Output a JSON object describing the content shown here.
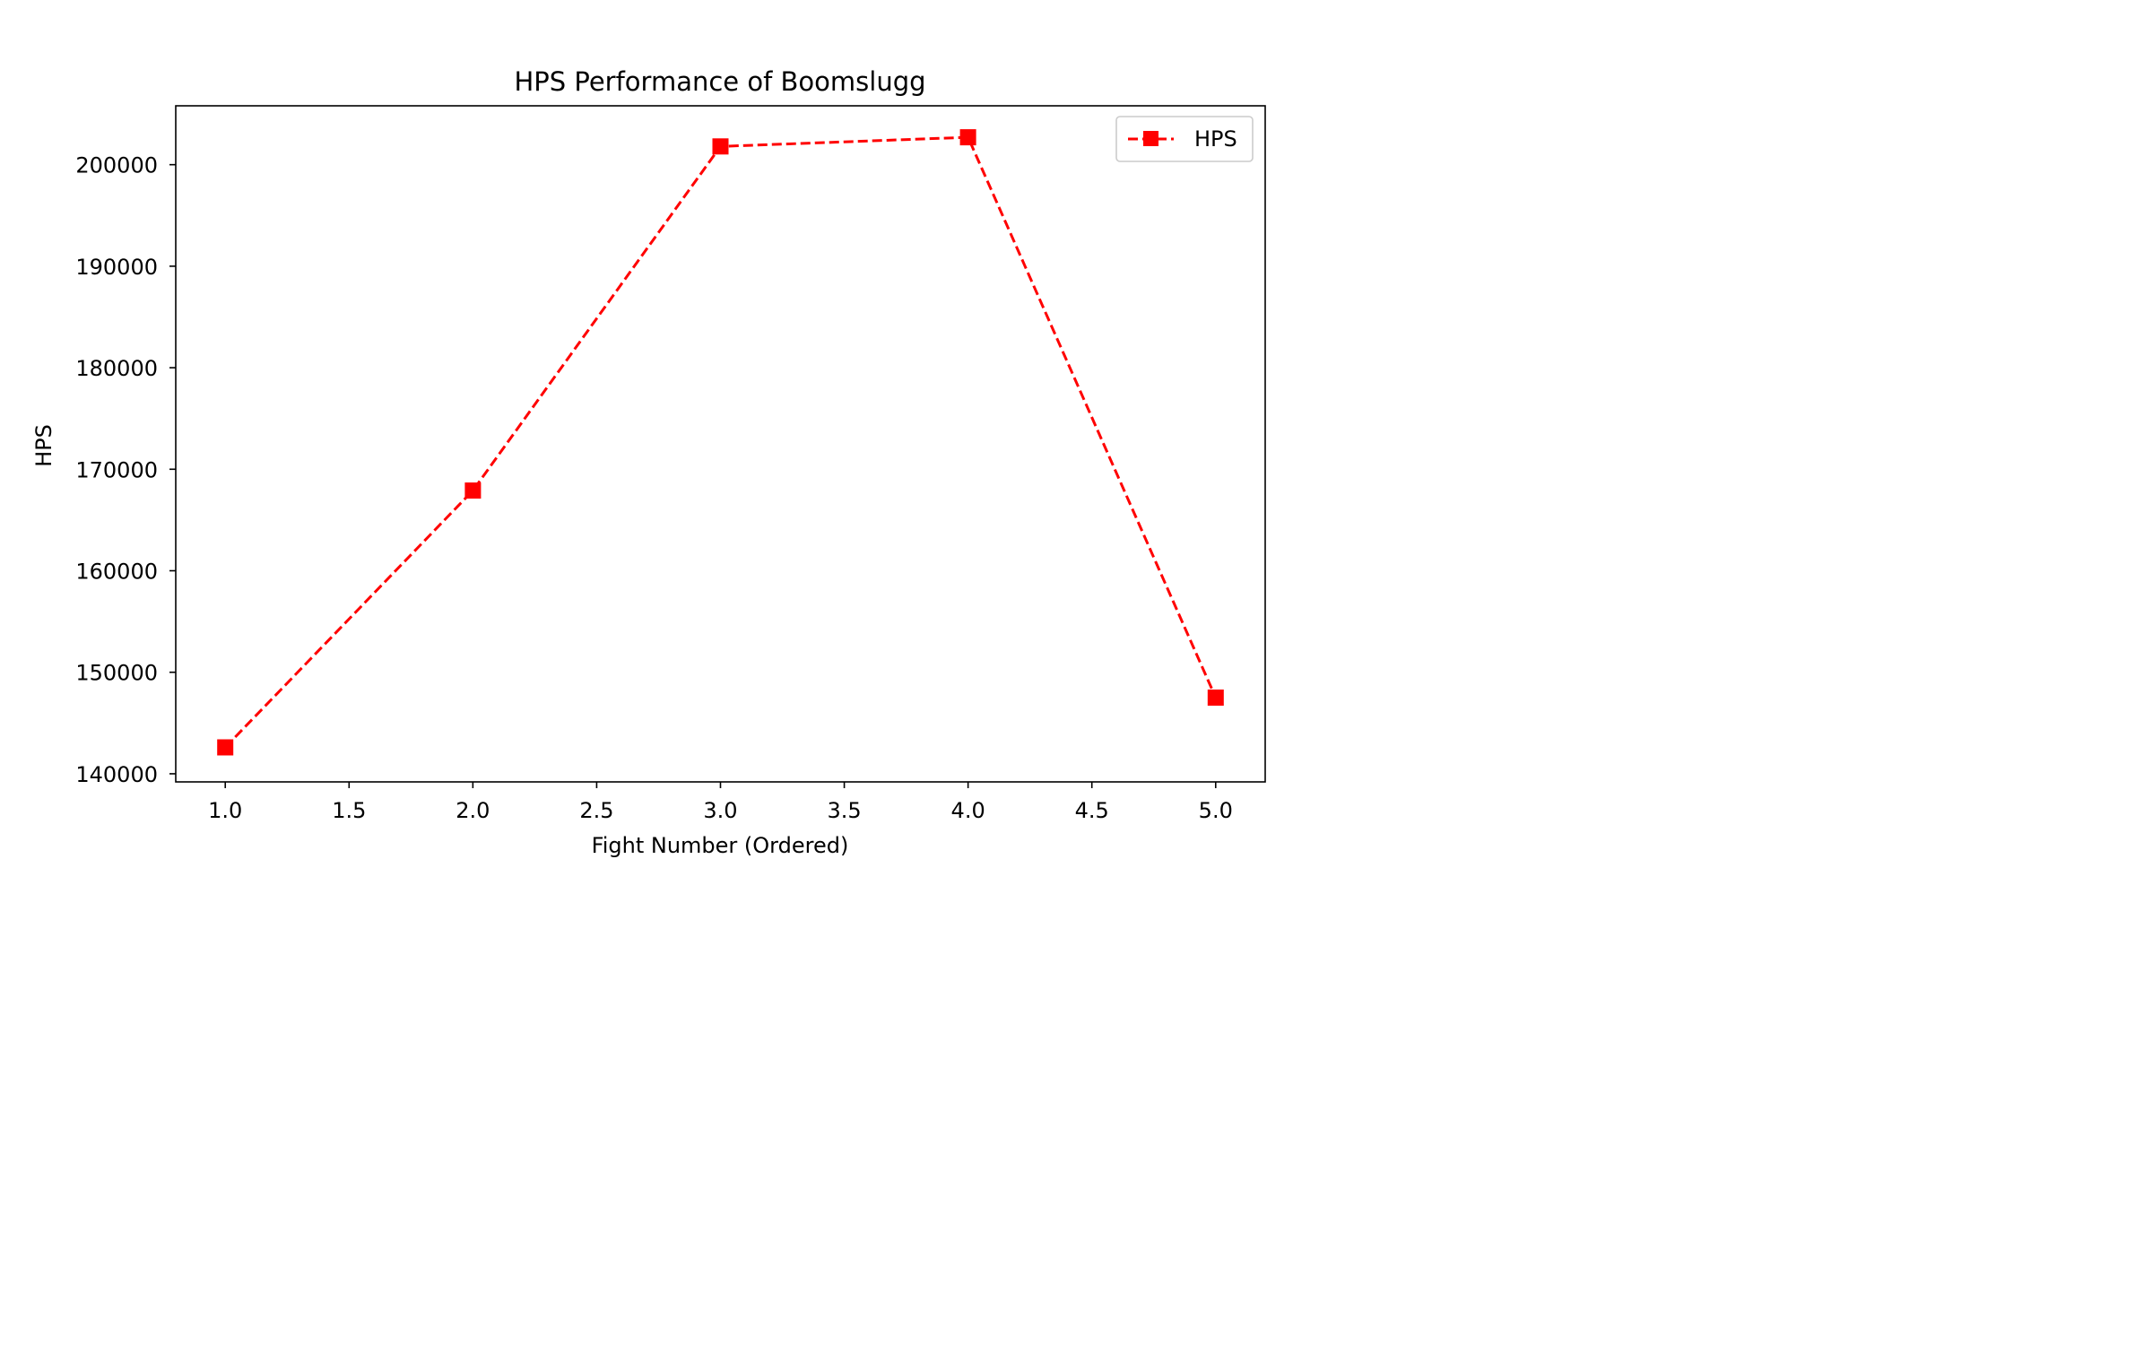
{
  "chart_data": {
    "type": "line",
    "title": "HPS Performance of Boomslugg",
    "xlabel": "Fight Number (Ordered)",
    "ylabel": "HPS",
    "x": [
      1,
      2,
      3,
      4,
      5
    ],
    "series": [
      {
        "name": "HPS",
        "values": [
          142600,
          167900,
          201800,
          202700,
          147500
        ],
        "color": "#ff0000",
        "line_style": "dashed",
        "marker": "square"
      }
    ],
    "xlim": [
      0.8,
      5.2
    ],
    "ylim": [
      139200,
      205800
    ],
    "x_ticks": [
      1.0,
      1.5,
      2.0,
      2.5,
      3.0,
      3.5,
      4.0,
      4.5,
      5.0
    ],
    "x_tick_labels": [
      "1.0",
      "1.5",
      "2.0",
      "2.5",
      "3.0",
      "3.5",
      "4.0",
      "4.5",
      "5.0"
    ],
    "y_ticks": [
      140000,
      150000,
      160000,
      170000,
      180000,
      190000,
      200000
    ],
    "y_tick_labels": [
      "140000",
      "150000",
      "160000",
      "170000",
      "180000",
      "190000",
      "200000"
    ],
    "grid": false,
    "legend": {
      "position": "top-right",
      "entries": [
        "HPS"
      ]
    }
  }
}
